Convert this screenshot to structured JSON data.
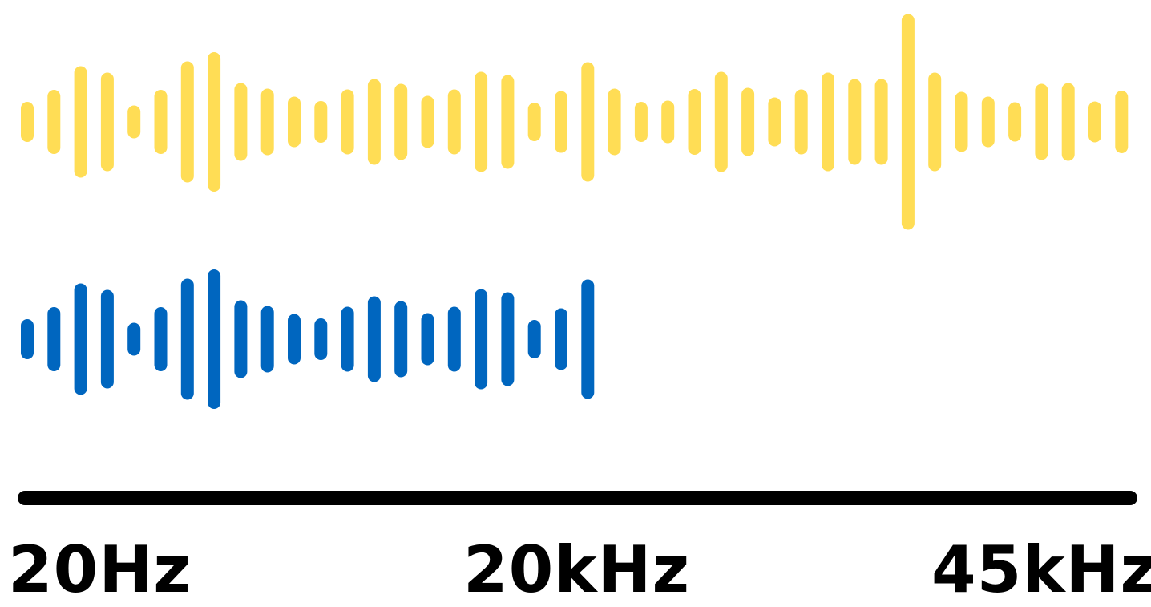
{
  "colors": {
    "wide_range_bars": "#FFDD55",
    "audible_range_bars": "#0066BF",
    "axis": "#000000"
  },
  "axis": {
    "labels": [
      "20Hz",
      "20kHz",
      "45kHz"
    ]
  }
}
